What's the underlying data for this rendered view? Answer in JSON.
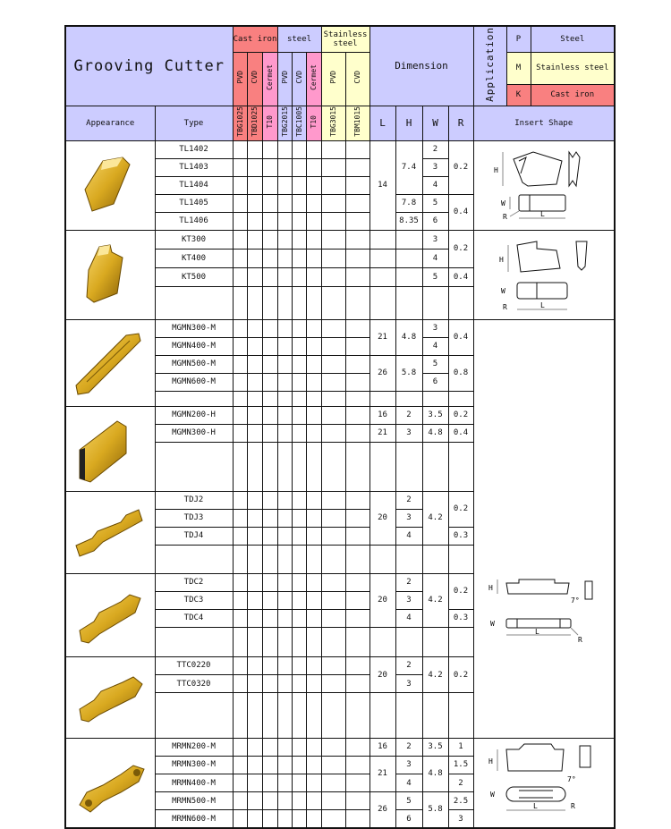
{
  "header": {
    "title": "Grooving Cutter",
    "groups": {
      "cast_iron": "Cast iron",
      "steel": "steel",
      "stainless": "Stainless steel"
    },
    "coatings": [
      "PVD",
      "CVD",
      "Cermet",
      "PVD",
      "CVD",
      "Cermet",
      "PVD",
      "CVD"
    ],
    "grades": [
      "TBG1025",
      "TBD1025",
      "T10",
      "TBG2015",
      "TBC1005",
      "T10",
      "TBG3015",
      "TBM1015"
    ],
    "dimension": "Dimension",
    "application": "Application",
    "legend": [
      {
        "code": "P",
        "label": "Steel"
      },
      {
        "code": "M",
        "label": "Stainless steel"
      },
      {
        "code": "K",
        "label": "Cast iron"
      }
    ],
    "appearance": "Appearance",
    "type": "Type",
    "dims": [
      "L",
      "H",
      "W",
      "R"
    ],
    "insert_shape": "Insert Shape"
  },
  "colors": {
    "cast_iron": "#f98080",
    "cermet": "#ff99cc",
    "steel": "#ccccff",
    "stainless": "#ffffcc",
    "header": "#ccccff",
    "insert_gold": "#d9a920"
  },
  "groups": [
    {
      "appearance_icon": "tl-insert-icon",
      "types": [
        "TL1402",
        "TL1403",
        "TL1404",
        "TL1405",
        "TL1406"
      ],
      "L": [
        "14"
      ],
      "H": [
        "7.4",
        "7.8",
        "8.35"
      ],
      "W": [
        "2",
        "3",
        "4",
        "5",
        "6"
      ],
      "R": [
        "0.2",
        "0.4"
      ]
    },
    {
      "appearance_icon": "kt-insert-icon",
      "types": [
        "KT300",
        "KT400",
        "KT500",
        ""
      ],
      "L": [
        "",
        "",
        "",
        ""
      ],
      "H": [
        "",
        "",
        "",
        ""
      ],
      "W": [
        "3",
        "4",
        "5",
        ""
      ],
      "R": [
        "0.2",
        "0.4",
        ""
      ]
    },
    {
      "appearance_icon": "mgmn-m-insert-icon",
      "types": [
        "MGMN300-M",
        "MGMN400-M",
        "MGMN500-M",
        "MGMN600-M",
        ""
      ],
      "L": [
        "21",
        "26",
        ""
      ],
      "H": [
        "4.8",
        "5.8",
        ""
      ],
      "W": [
        "3",
        "4",
        "5",
        "6",
        ""
      ],
      "R": [
        "0.4",
        "0.8",
        ""
      ]
    },
    {
      "appearance_icon": "mgmn-h-insert-icon",
      "types": [
        "MGMN200-H",
        "MGMN300-H",
        ""
      ],
      "L": [
        "16",
        "21",
        ""
      ],
      "H": [
        "2",
        "3",
        ""
      ],
      "W": [
        "3.5",
        "4.8",
        ""
      ],
      "R": [
        "0.2",
        "0.4",
        ""
      ]
    },
    {
      "appearance_icon": "tdj-insert-icon",
      "types": [
        "TDJ2",
        "TDJ3",
        "TDJ4",
        ""
      ],
      "L": [
        "20",
        ""
      ],
      "H": [
        "2",
        "3",
        "4",
        ""
      ],
      "W": [
        "4.2",
        ""
      ],
      "R": [
        "0.2",
        "0.3",
        ""
      ]
    },
    {
      "appearance_icon": "tdc-insert-icon",
      "types": [
        "TDC2",
        "TDC3",
        "TDC4",
        ""
      ],
      "L": [
        "20",
        ""
      ],
      "H": [
        "2",
        "3",
        "4",
        ""
      ],
      "W": [
        "4.2",
        ""
      ],
      "R": [
        "0.2",
        "0.3",
        ""
      ]
    },
    {
      "appearance_icon": "ttc-insert-icon",
      "types": [
        "TTC0220",
        "TTC0320",
        ""
      ],
      "L": [
        "20",
        ""
      ],
      "H": [
        "2",
        "3",
        ""
      ],
      "W": [
        "4.2",
        ""
      ],
      "R": [
        "0.2",
        ""
      ]
    },
    {
      "appearance_icon": "mrmn-insert-icon",
      "types": [
        "MRMN200-M",
        "MRMN300-M",
        "MRMN400-M",
        "MRMN500-M",
        "MRMN600-M"
      ],
      "L": [
        "16",
        "21",
        "26"
      ],
      "H": [
        "2",
        "3",
        "4",
        "5",
        "6"
      ],
      "W": [
        "3.5",
        "4.8",
        "5.8"
      ],
      "R": [
        "1",
        "1.5",
        "2",
        "2.5",
        "3"
      ]
    }
  ],
  "shape_labels": {
    "H": "H",
    "W": "W",
    "L": "L",
    "R": "R",
    "angle": "7°"
  }
}
